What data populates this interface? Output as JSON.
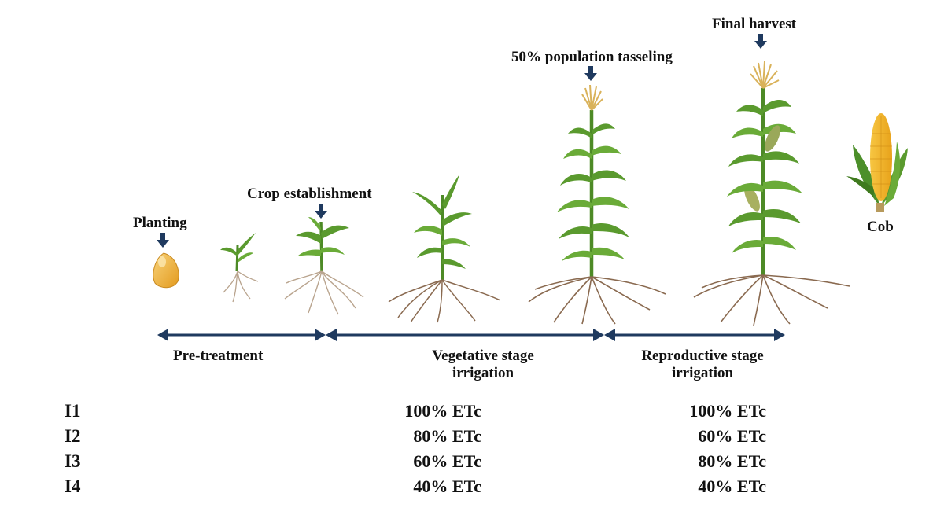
{
  "milestones": {
    "planting": "Planting",
    "crop_establishment": "Crop establishment",
    "tasseling": "50% population tasseling",
    "final_harvest": "Final harvest",
    "cob": "Cob"
  },
  "stages": {
    "pre_treatment": "Pre-treatment",
    "vegetative_line1": "Vegetative stage",
    "vegetative_line2": "irrigation",
    "reproductive_line1": "Reproductive stage",
    "reproductive_line2": "irrigation"
  },
  "treatments": [
    {
      "name": "I1",
      "vegetative": "100% ETc",
      "reproductive": "100% ETc"
    },
    {
      "name": "I2",
      "vegetative": "80% ETc",
      "reproductive": "60% ETc"
    },
    {
      "name": "I3",
      "vegetative": "60% ETc",
      "reproductive": "80% ETc"
    },
    {
      "name": "I4",
      "vegetative": "40% ETc",
      "reproductive": "40% ETc"
    }
  ],
  "colors": {
    "arrow": "#1f3a5f",
    "leaf": "#5a9a2e",
    "leaf_dark": "#3f7a1e",
    "root": "#8a6a50",
    "tassel": "#d9b25a",
    "kernel": "#f2b233"
  }
}
